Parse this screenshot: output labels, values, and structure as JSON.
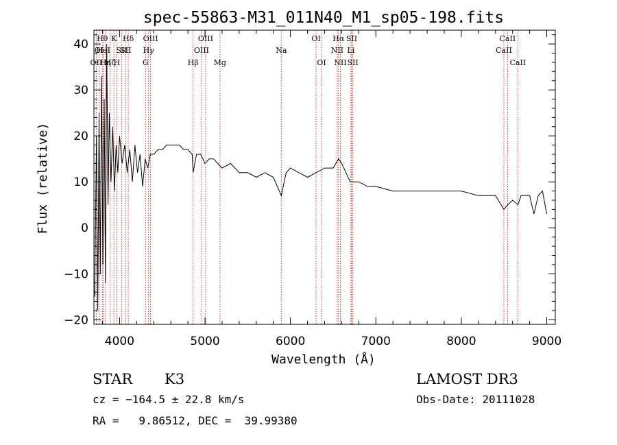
{
  "chart_data": {
    "type": "line",
    "title": "spec-55863-M31_011N40_M1_sp05-198.fits",
    "xlabel": "Wavelength (Å)",
    "ylabel": "Flux (relative)",
    "xlim": [
      3700,
      9100
    ],
    "ylim": [
      -21,
      43
    ],
    "xticks": [
      4000,
      5000,
      6000,
      7000,
      8000,
      9000
    ],
    "xtick_labels": [
      "4000",
      "5000",
      "6000",
      "7000",
      "8000",
      "9000"
    ],
    "yticks": [
      -20,
      -10,
      0,
      10,
      20,
      30,
      40
    ],
    "ytick_labels": [
      "−20",
      "−10",
      "0",
      "10",
      "20",
      "30",
      "40"
    ],
    "grid": false,
    "series": [
      {
        "name": "flux",
        "x": [
          3710,
          3730,
          3745,
          3760,
          3775,
          3790,
          3805,
          3820,
          3835,
          3850,
          3865,
          3880,
          3900,
          3920,
          3940,
          3960,
          3980,
          4000,
          4030,
          4060,
          4090,
          4120,
          4150,
          4180,
          4210,
          4240,
          4270,
          4300,
          4330,
          4360,
          4400,
          4450,
          4500,
          4550,
          4600,
          4650,
          4700,
          4750,
          4800,
          4850,
          4861,
          4900,
          4950,
          5000,
          5050,
          5100,
          5150,
          5200,
          5300,
          5400,
          5500,
          5600,
          5700,
          5800,
          5893,
          5950,
          6000,
          6100,
          6200,
          6300,
          6400,
          6500,
          6563,
          6600,
          6650,
          6700,
          6800,
          6900,
          7000,
          7200,
          7400,
          7600,
          7800,
          8000,
          8200,
          8400,
          8498,
          8542,
          8600,
          8662,
          8700,
          8800,
          8850,
          8900,
          8950,
          9000
        ],
        "y": [
          -15,
          20,
          -18,
          25,
          -10,
          33,
          -8,
          28,
          -12,
          40,
          5,
          25,
          10,
          22,
          8,
          18,
          12,
          20,
          14,
          18,
          12,
          17,
          10,
          18,
          12,
          16,
          9,
          15,
          13,
          16,
          16,
          17,
          17,
          18,
          18,
          18,
          18,
          17,
          17,
          16,
          12,
          16,
          16,
          14,
          15,
          15,
          14,
          13,
          14,
          12,
          12,
          11,
          12,
          11,
          7,
          12,
          13,
          12,
          11,
          12,
          13,
          13,
          15,
          14,
          12,
          10,
          10,
          9,
          9,
          8,
          8,
          8,
          8,
          8,
          7,
          7,
          4,
          5,
          6,
          5,
          7,
          7,
          3,
          7,
          8,
          3
        ]
      }
    ],
    "line_markers": [
      {
        "wl": 3727,
        "label": "OII",
        "row": 2
      },
      {
        "wl": 3760,
        "label": "OI",
        "row": 1
      },
      {
        "wl": 3798,
        "label": "Hθ",
        "row": 0
      },
      {
        "wl": 3810,
        "label": "HeI",
        "row": 1
      },
      {
        "wl": 3835,
        "label": "Hη",
        "row": 2
      },
      {
        "wl": 3889,
        "label": "Hζ",
        "row": 2
      },
      {
        "wl": 3934,
        "label": "K",
        "row": 0
      },
      {
        "wl": 3968,
        "label": "H",
        "row": 2
      },
      {
        "wl": 4026,
        "label": "SII",
        "row": 1
      },
      {
        "wl": 4102,
        "label": "Hδ",
        "row": 0
      },
      {
        "wl": 4072,
        "label": "SII",
        "row": 1
      },
      {
        "wl": 4304,
        "label": "G",
        "row": 2
      },
      {
        "wl": 4340,
        "label": "Hγ",
        "row": 1
      },
      {
        "wl": 4363,
        "label": "OIII",
        "row": 0
      },
      {
        "wl": 4861,
        "label": "Hβ",
        "row": 2
      },
      {
        "wl": 4959,
        "label": "OIII",
        "row": 1
      },
      {
        "wl": 5007,
        "label": "OIII",
        "row": 0
      },
      {
        "wl": 5175,
        "label": "Mg",
        "row": 2
      },
      {
        "wl": 5893,
        "label": "Na",
        "row": 1
      },
      {
        "wl": 6300,
        "label": "OI",
        "row": 0
      },
      {
        "wl": 6364,
        "label": "OI",
        "row": 2
      },
      {
        "wl": 6548,
        "label": "NII",
        "row": 1
      },
      {
        "wl": 6563,
        "label": "Hα",
        "row": 0
      },
      {
        "wl": 6584,
        "label": "NII",
        "row": 2
      },
      {
        "wl": 6708,
        "label": "Li",
        "row": 1
      },
      {
        "wl": 6717,
        "label": "SII",
        "row": 0
      },
      {
        "wl": 6731,
        "label": "SII",
        "row": 2
      },
      {
        "wl": 8498,
        "label": "CaII",
        "row": 1
      },
      {
        "wl": 8542,
        "label": "CaII",
        "row": 0
      },
      {
        "wl": 8662,
        "label": "CaII",
        "row": 2
      }
    ]
  },
  "info": {
    "class_label": "STAR",
    "subclass": "K3",
    "survey": "LAMOST DR3",
    "cz": "cz = −164.5 ± 22.8 km/s",
    "obs_date": "Obs-Date: 20111028",
    "radec": "RA =   9.86512, DEC =  39.99380"
  },
  "colors": {
    "spectrum": "#000000",
    "marker": "#cc0000",
    "axis": "#000000"
  }
}
